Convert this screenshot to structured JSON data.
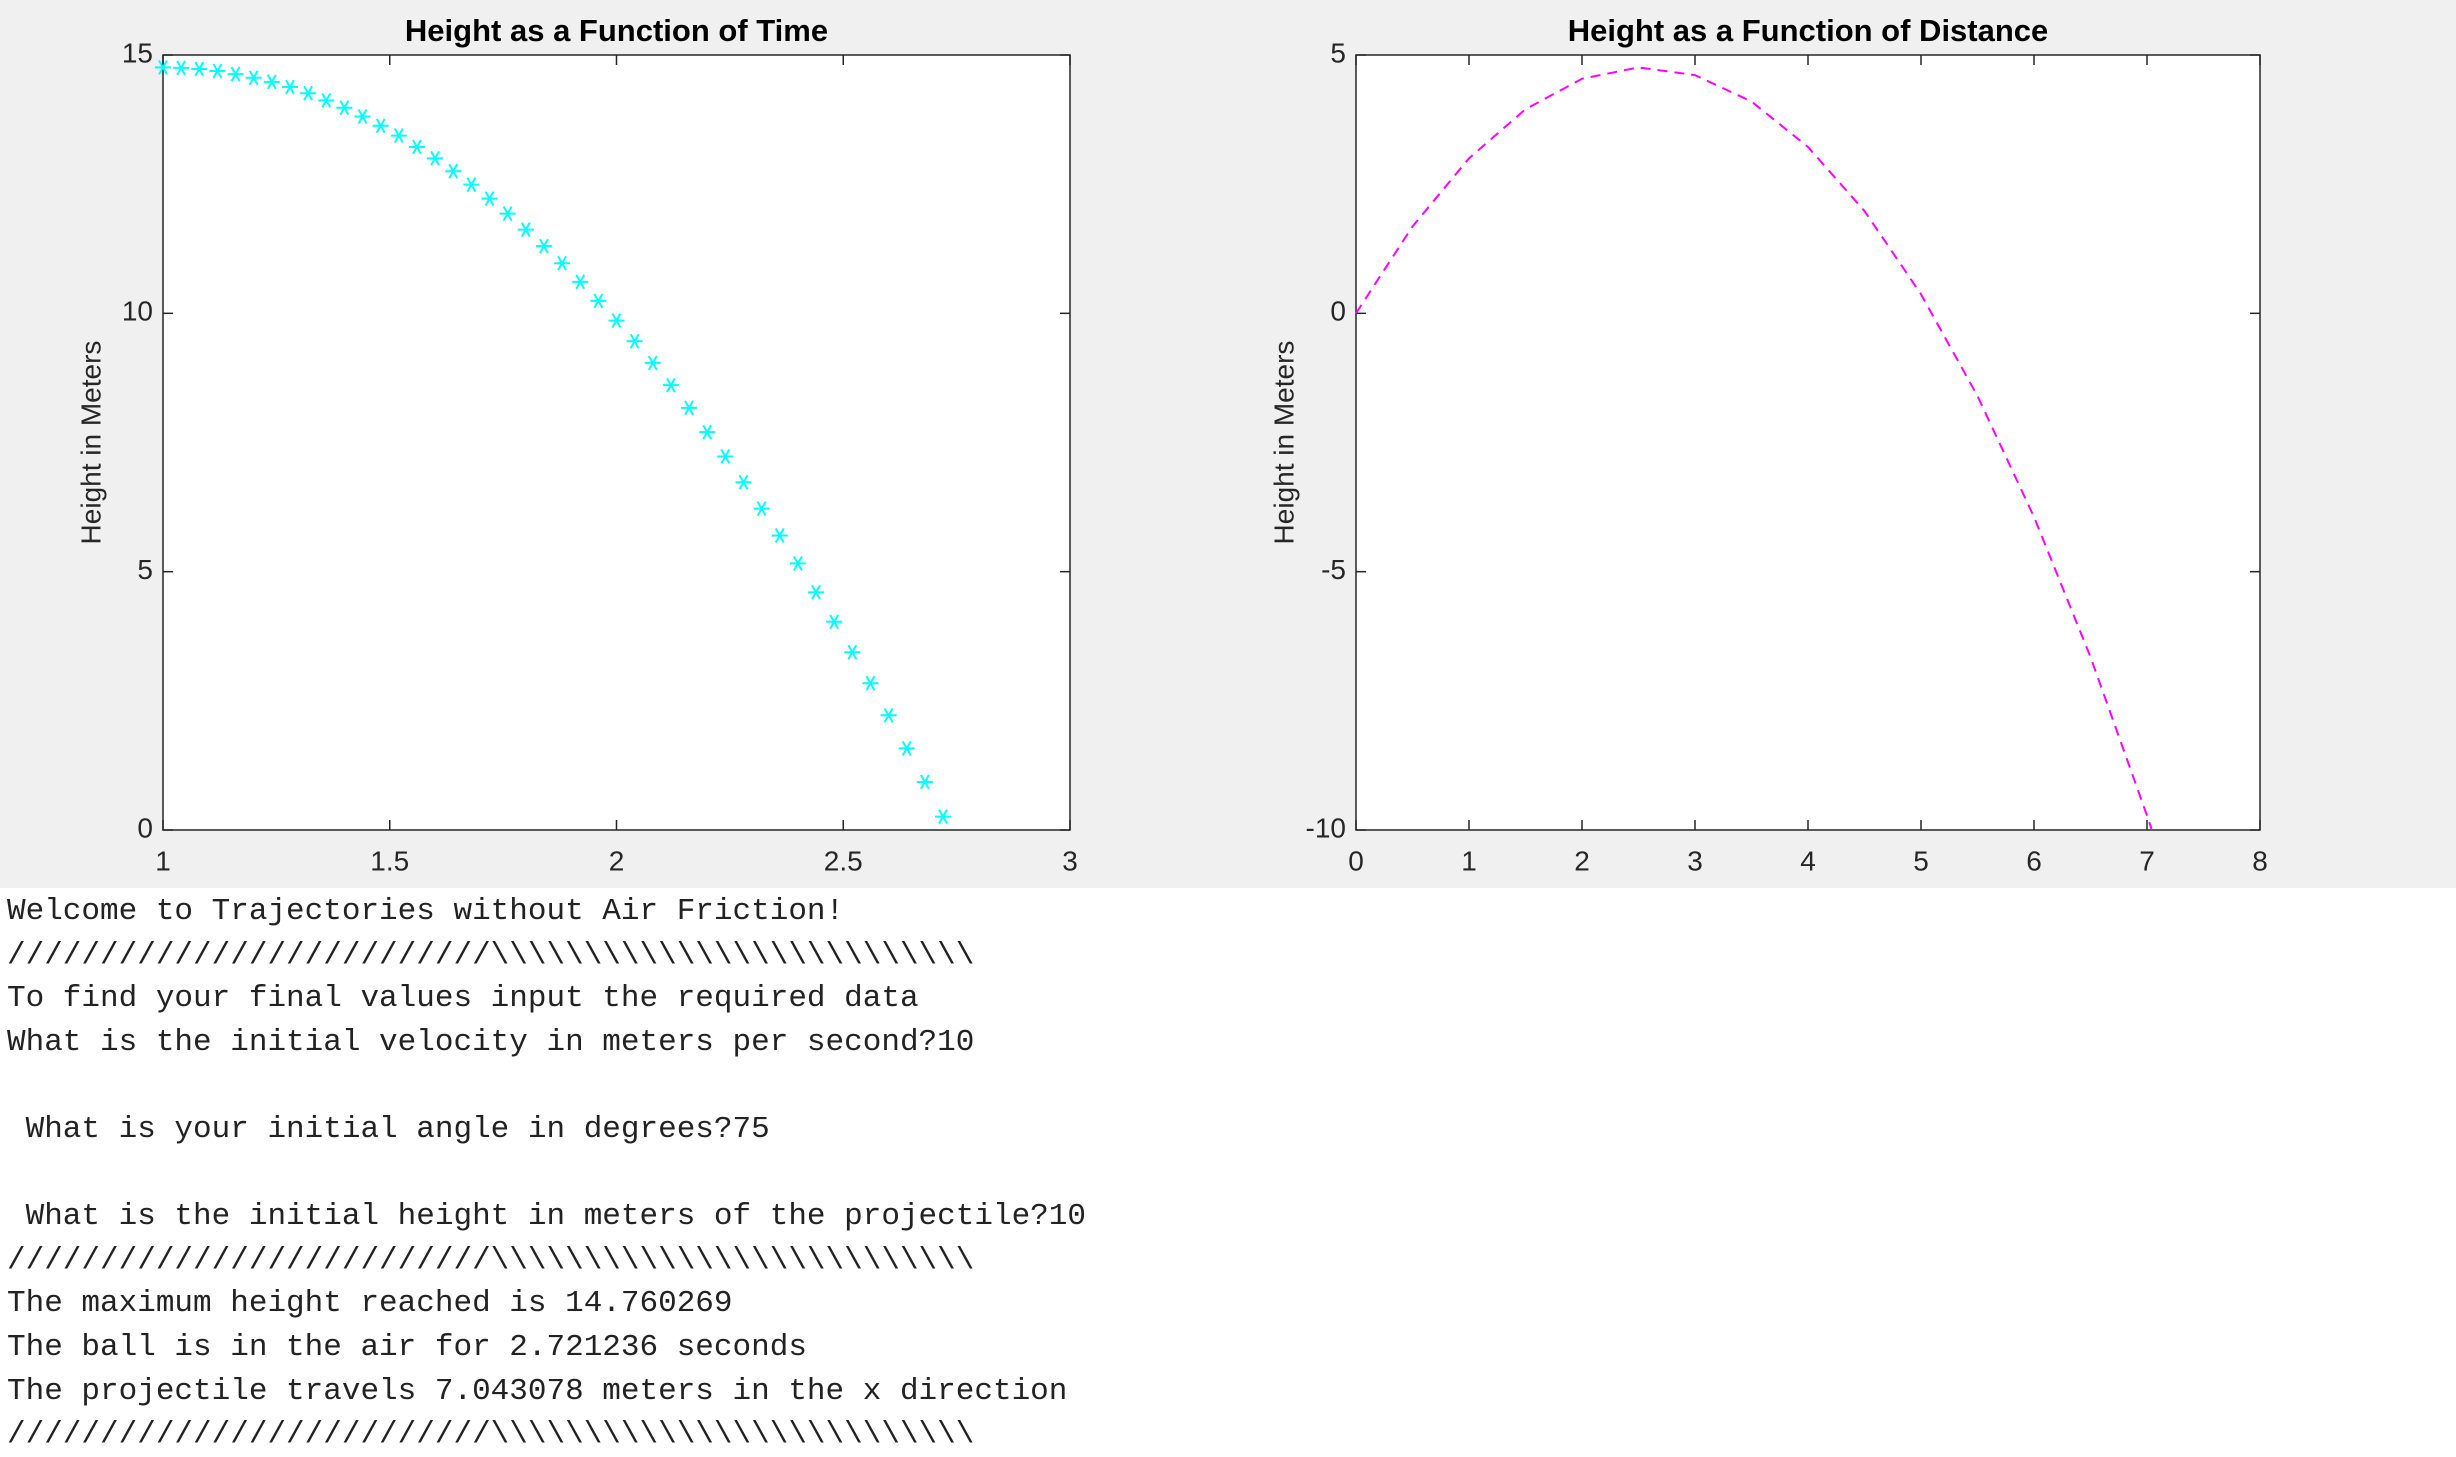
{
  "chart_data": [
    {
      "type": "scatter",
      "title": "Height as a Function of Time",
      "ylabel": "Height in Meters",
      "marker": "*",
      "x": [
        1,
        1.04,
        1.08,
        1.12,
        1.16,
        1.2,
        1.24,
        1.28,
        1.32,
        1.36,
        1.4,
        1.44,
        1.48,
        1.52,
        1.56,
        1.6,
        1.64,
        1.68,
        1.72,
        1.76,
        1.8,
        1.84,
        1.88,
        1.92,
        1.96,
        2,
        2.04,
        2.08,
        2.12,
        2.16,
        2.2,
        2.24,
        2.28,
        2.32,
        2.36,
        2.4,
        2.44,
        2.48,
        2.52,
        2.56,
        2.6,
        2.64,
        2.68,
        2.72
      ],
      "series": [
        {
          "color": "#00ffff",
          "values": [
            14.76,
            14.75,
            14.73,
            14.69,
            14.63,
            14.56,
            14.48,
            14.38,
            14.26,
            14.12,
            13.98,
            13.81,
            13.63,
            13.44,
            13.22,
            13.0,
            12.75,
            12.49,
            12.22,
            11.93,
            11.62,
            11.3,
            10.97,
            10.61,
            10.24,
            9.86,
            9.46,
            9.04,
            8.61,
            8.17,
            7.7,
            7.23,
            6.73,
            6.22,
            5.7,
            5.16,
            4.6,
            4.03,
            3.44,
            2.84,
            2.22,
            1.58,
            0.93,
            0.26
          ]
        }
      ],
      "xlim": [
        1,
        3
      ],
      "xticks": [
        1,
        1.5,
        2,
        2.5,
        3
      ],
      "ylim": [
        0,
        15
      ],
      "yticks": [
        0,
        5,
        10,
        15
      ],
      "grid": false
    },
    {
      "type": "line",
      "title": "Height as a Function of Distance",
      "ylabel": "Height in Meters",
      "linestyle": "dashed",
      "x": [
        0,
        0.5,
        1,
        1.5,
        2,
        2.5,
        3,
        3.5,
        4,
        4.5,
        5,
        5.5,
        6,
        6.5,
        7,
        7.04
      ],
      "series": [
        {
          "color": "#ff00ff",
          "values": [
            0,
            1.68,
            3.0,
            3.95,
            4.54,
            4.76,
            4.61,
            4.1,
            3.22,
            1.98,
            0.37,
            -1.6,
            -3.94,
            -6.65,
            -9.72,
            -9.98
          ]
        }
      ],
      "xlim": [
        0,
        8
      ],
      "xticks": [
        0,
        1,
        2,
        3,
        4,
        5,
        6,
        7,
        8
      ],
      "ylim": [
        -10,
        5
      ],
      "yticks": [
        -10,
        -5,
        0,
        5
      ],
      "grid": false
    }
  ],
  "console": {
    "lines": [
      "Welcome to Trajectories without Air Friction!",
      "//////////////////////////\\\\\\\\\\\\\\\\\\\\\\\\\\\\\\\\\\\\\\\\\\\\\\\\\\\\",
      "To find your final values input the required data",
      "What is the initial velocity in meters per second?10",
      " What is your initial angle in degrees?75",
      " What is the initial height in meters of the projectile?10",
      "//////////////////////////\\\\\\\\\\\\\\\\\\\\\\\\\\\\\\\\\\\\\\\\\\\\\\\\\\\\",
      "The maximum height reached is 14.760269",
      "The ball is in the air for 2.721236 seconds",
      "The projectile travels 7.043078 meters in the x direction",
      "//////////////////////////\\\\\\\\\\\\\\\\\\\\\\\\\\\\\\\\\\\\\\\\\\\\\\\\\\\\"
    ]
  }
}
